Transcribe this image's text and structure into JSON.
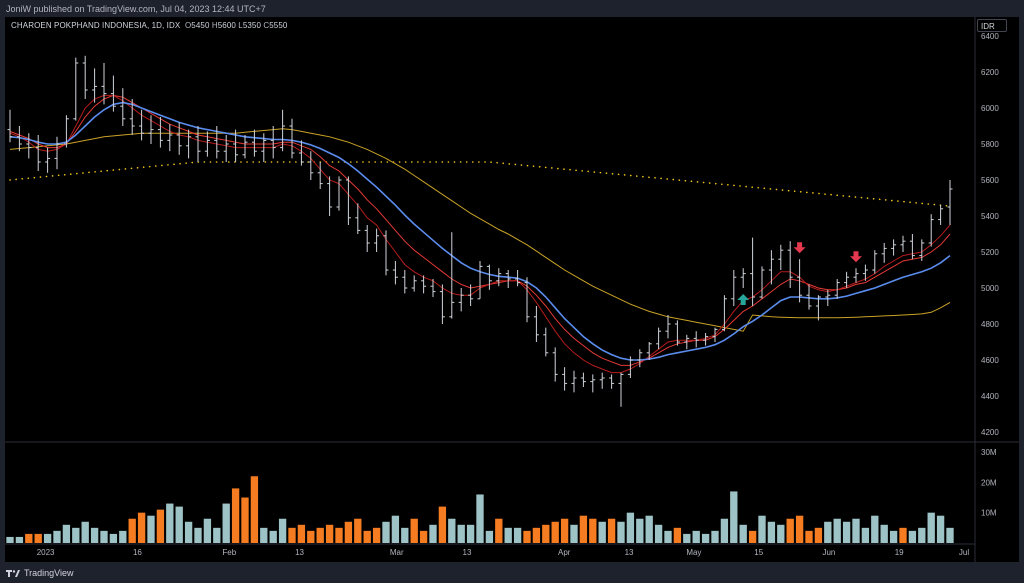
{
  "header": {
    "published_text": "JoniW published on TradingView.com, Jul 04, 2023 12:44 UTC+7"
  },
  "symbol": {
    "name": "CHAROEN POKPHAND INDONESIA, 1D, IDX",
    "open_label": "O",
    "open": "5450",
    "high_label": "H",
    "high": "5600",
    "low_label": "L",
    "low": "5350",
    "close_label": "C",
    "close": "5550"
  },
  "currency_button": "IDR",
  "footer": {
    "brand": "TradingView",
    "logo_icon": "tradingview-logo-icon"
  },
  "colors": {
    "background": "#000000",
    "frame": "#1e222d",
    "bars": "#d1d4dc",
    "ema_fast": "#b71c1c",
    "ema_mid": "#e53935",
    "ema_blue": "#5b8def",
    "sma_slow": "#c9a227",
    "sma_dotted": "#f0c419",
    "volume_up": "#9ec3c7",
    "volume_down": "#f57c20",
    "arrow_up": "#26a69a",
    "arrow_down": "#e5384f"
  },
  "chart_data": {
    "type": "ohlc-bar",
    "price_axis": {
      "ticks": [
        "6400",
        "6200",
        "6000",
        "5800",
        "5600",
        "5400",
        "5200",
        "5000",
        "4800",
        "4600",
        "4400",
        "4200"
      ],
      "range": [
        4170,
        6450
      ]
    },
    "volume_axis": {
      "ticks": [
        "30M",
        "20M",
        "10M"
      ],
      "range": [
        0,
        30
      ]
    },
    "time_axis": {
      "labels": [
        "2023",
        "16",
        "Feb",
        "13",
        "Mar",
        "13",
        "Apr",
        "13",
        "May",
        "15",
        "Jun",
        "19",
        "Jul"
      ]
    },
    "ohlc": [
      [
        5880,
        5990,
        5810,
        5840
      ],
      [
        5840,
        5900,
        5760,
        5800
      ],
      [
        5800,
        5860,
        5720,
        5780
      ],
      [
        5780,
        5850,
        5650,
        5700
      ],
      [
        5700,
        5780,
        5640,
        5720
      ],
      [
        5720,
        5840,
        5660,
        5800
      ],
      [
        5800,
        5960,
        5780,
        5940
      ],
      [
        5940,
        6280,
        5930,
        6250
      ],
      [
        6250,
        6290,
        6050,
        6100
      ],
      [
        6100,
        6220,
        6030,
        6120
      ],
      [
        6120,
        6250,
        6020,
        6080
      ],
      [
        6080,
        6180,
        5980,
        6010
      ],
      [
        6010,
        6110,
        5900,
        5940
      ],
      [
        5940,
        6050,
        5850,
        5900
      ],
      [
        5900,
        5990,
        5820,
        5860
      ],
      [
        5860,
        5960,
        5800,
        5880
      ],
      [
        5880,
        5950,
        5780,
        5820
      ],
      [
        5820,
        5910,
        5760,
        5850
      ],
      [
        5850,
        5920,
        5740,
        5790
      ],
      [
        5790,
        5880,
        5720,
        5840
      ],
      [
        5840,
        5900,
        5700,
        5760
      ],
      [
        5760,
        5870,
        5730,
        5820
      ],
      [
        5820,
        5900,
        5720,
        5760
      ],
      [
        5760,
        5850,
        5700,
        5800
      ],
      [
        5800,
        5880,
        5700,
        5740
      ],
      [
        5740,
        5850,
        5720,
        5810
      ],
      [
        5810,
        5880,
        5730,
        5760
      ],
      [
        5760,
        5860,
        5700,
        5820
      ],
      [
        5820,
        5900,
        5720,
        5780
      ],
      [
        5780,
        5990,
        5760,
        5900
      ],
      [
        5900,
        5940,
        5720,
        5750
      ],
      [
        5750,
        5820,
        5680,
        5700
      ],
      [
        5700,
        5760,
        5600,
        5640
      ],
      [
        5640,
        5700,
        5550,
        5580
      ],
      [
        5580,
        5620,
        5400,
        5450
      ],
      [
        5450,
        5620,
        5430,
        5600
      ],
      [
        5600,
        5620,
        5350,
        5390
      ],
      [
        5390,
        5470,
        5300,
        5320
      ],
      [
        5320,
        5350,
        5200,
        5250
      ],
      [
        5250,
        5330,
        5200,
        5290
      ],
      [
        5290,
        5320,
        5070,
        5100
      ],
      [
        5100,
        5150,
        5020,
        5060
      ],
      [
        5060,
        5100,
        4970,
        5000
      ],
      [
        5000,
        5070,
        4980,
        5040
      ],
      [
        5040,
        5070,
        4970,
        5010
      ],
      [
        5010,
        5050,
        4950,
        4980
      ],
      [
        4980,
        5020,
        4800,
        4840
      ],
      [
        4840,
        5310,
        4830,
        4920
      ],
      [
        4920,
        5000,
        4870,
        4960
      ],
      [
        4960,
        5020,
        4900,
        4940
      ],
      [
        4940,
        5150,
        4940,
        5120
      ],
      [
        5120,
        5130,
        4990,
        5040
      ],
      [
        5040,
        5110,
        5010,
        5080
      ],
      [
        5080,
        5100,
        5000,
        5050
      ],
      [
        5050,
        5100,
        5010,
        5030
      ],
      [
        5030,
        5060,
        4810,
        4840
      ],
      [
        4840,
        4900,
        4700,
        4740
      ],
      [
        4740,
        4780,
        4620,
        4640
      ],
      [
        4640,
        4670,
        4480,
        4520
      ],
      [
        4520,
        4560,
        4430,
        4470
      ],
      [
        4470,
        4540,
        4420,
        4500
      ],
      [
        4500,
        4530,
        4450,
        4480
      ],
      [
        4480,
        4520,
        4420,
        4490
      ],
      [
        4490,
        4530,
        4440,
        4500
      ],
      [
        4500,
        4520,
        4440,
        4470
      ],
      [
        4470,
        4530,
        4340,
        4520
      ],
      [
        4520,
        4620,
        4500,
        4600
      ],
      [
        4600,
        4660,
        4560,
        4640
      ],
      [
        4640,
        4700,
        4600,
        4690
      ],
      [
        4690,
        4780,
        4660,
        4760
      ],
      [
        4760,
        4850,
        4720,
        4800
      ],
      [
        4800,
        4820,
        4680,
        4700
      ],
      [
        4700,
        4740,
        4660,
        4720
      ],
      [
        4720,
        4760,
        4670,
        4710
      ],
      [
        4710,
        4750,
        4680,
        4730
      ],
      [
        4730,
        4780,
        4700,
        4770
      ],
      [
        4770,
        4960,
        4760,
        4940
      ],
      [
        4940,
        5100,
        4900,
        5060
      ],
      [
        5060,
        5110,
        5000,
        5080
      ],
      [
        5080,
        5280,
        4900,
        4950
      ],
      [
        4950,
        5120,
        4940,
        5100
      ],
      [
        5100,
        5210,
        5020,
        5160
      ],
      [
        5160,
        5240,
        5100,
        5210
      ],
      [
        5210,
        5260,
        5000,
        5060
      ],
      [
        5060,
        5160,
        4920,
        4960
      ],
      [
        4960,
        5020,
        4880,
        4900
      ],
      [
        4900,
        4960,
        4820,
        4950
      ],
      [
        4950,
        4990,
        4900,
        4960
      ],
      [
        4960,
        5050,
        4940,
        5030
      ],
      [
        5030,
        5090,
        5000,
        5060
      ],
      [
        5060,
        5110,
        5030,
        5080
      ],
      [
        5080,
        5130,
        5040,
        5100
      ],
      [
        5100,
        5210,
        5080,
        5190
      ],
      [
        5190,
        5250,
        5140,
        5220
      ],
      [
        5220,
        5270,
        5180,
        5240
      ],
      [
        5240,
        5290,
        5200,
        5260
      ],
      [
        5260,
        5300,
        5160,
        5180
      ],
      [
        5180,
        5270,
        5150,
        5250
      ],
      [
        5250,
        5410,
        5230,
        5380
      ],
      [
        5380,
        5460,
        5350,
        5440
      ],
      [
        5450,
        5600,
        5350,
        5550
      ]
    ],
    "ema_fast": [
      5860,
      5840,
      5810,
      5770,
      5760,
      5770,
      5800,
      5900,
      6000,
      6050,
      6070,
      6070,
      6040,
      6000,
      5960,
      5930,
      5900,
      5870,
      5850,
      5840,
      5820,
      5810,
      5800,
      5790,
      5780,
      5780,
      5780,
      5780,
      5780,
      5800,
      5790,
      5760,
      5720,
      5660,
      5600,
      5580,
      5520,
      5460,
      5390,
      5350,
      5270,
      5200,
      5130,
      5090,
      5060,
      5040,
      5000,
      4970,
      4960,
      4960,
      5000,
      5020,
      5040,
      5040,
      5040,
      4990,
      4920,
      4840,
      4760,
      4690,
      4640,
      4600,
      4570,
      4550,
      4530,
      4530,
      4550,
      4580,
      4620,
      4660,
      4700,
      4710,
      4710,
      4710,
      4720,
      4740,
      4800,
      4870,
      4930,
      4950,
      4990,
      5040,
      5090,
      5090,
      5060,
      5010,
      4990,
      4980,
      4990,
      5010,
      5030,
      5050,
      5080,
      5120,
      5150,
      5180,
      5190,
      5200,
      5240,
      5290,
      5350
    ],
    "ema_mid": [
      5870,
      5850,
      5830,
      5800,
      5780,
      5780,
      5800,
      5870,
      5950,
      6010,
      6050,
      6070,
      6060,
      6030,
      6000,
      5970,
      5940,
      5910,
      5890,
      5870,
      5850,
      5840,
      5830,
      5820,
      5810,
      5800,
      5800,
      5800,
      5800,
      5810,
      5810,
      5790,
      5770,
      5730,
      5680,
      5650,
      5600,
      5550,
      5490,
      5440,
      5380,
      5320,
      5260,
      5210,
      5170,
      5130,
      5090,
      5050,
      5020,
      5000,
      5010,
      5020,
      5030,
      5040,
      5040,
      5010,
      4960,
      4900,
      4830,
      4770,
      4720,
      4680,
      4640,
      4610,
      4590,
      4570,
      4570,
      4590,
      4610,
      4640,
      4670,
      4690,
      4700,
      4710,
      4710,
      4730,
      4770,
      4820,
      4870,
      4900,
      4940,
      4980,
      5020,
      5050,
      5040,
      5020,
      5000,
      4990,
      4990,
      5000,
      5020,
      5030,
      5060,
      5090,
      5120,
      5150,
      5160,
      5170,
      5200,
      5240,
      5300
    ],
    "ema_blue": [
      5840,
      5835,
      5825,
      5810,
      5800,
      5800,
      5810,
      5850,
      5900,
      5950,
      5990,
      6020,
      6030,
      6020,
      6000,
      5980,
      5960,
      5940,
      5920,
      5905,
      5890,
      5880,
      5870,
      5860,
      5850,
      5840,
      5835,
      5830,
      5825,
      5825,
      5820,
      5810,
      5795,
      5775,
      5750,
      5725,
      5690,
      5650,
      5605,
      5560,
      5510,
      5460,
      5405,
      5355,
      5310,
      5265,
      5220,
      5180,
      5140,
      5110,
      5090,
      5075,
      5065,
      5060,
      5055,
      5035,
      5000,
      4950,
      4890,
      4830,
      4780,
      4730,
      4690,
      4655,
      4630,
      4610,
      4600,
      4600,
      4605,
      4615,
      4630,
      4640,
      4650,
      4660,
      4670,
      4685,
      4710,
      4745,
      4785,
      4815,
      4850,
      4890,
      4930,
      4950,
      4950,
      4945,
      4940,
      4940,
      4945,
      4955,
      4970,
      4985,
      5000,
      5020,
      5040,
      5060,
      5075,
      5090,
      5110,
      5140,
      5180
    ],
    "sma_slow": [
      5770,
      5775,
      5780,
      5785,
      5790,
      5795,
      5800,
      5810,
      5820,
      5830,
      5840,
      5845,
      5850,
      5855,
      5860,
      5860,
      5860,
      5860,
      5860,
      5860,
      5860,
      5860,
      5860,
      5860,
      5860,
      5865,
      5870,
      5875,
      5880,
      5885,
      5880,
      5870,
      5860,
      5850,
      5840,
      5825,
      5810,
      5790,
      5770,
      5745,
      5720,
      5690,
      5660,
      5625,
      5590,
      5555,
      5520,
      5485,
      5450,
      5415,
      5385,
      5355,
      5325,
      5300,
      5270,
      5240,
      5205,
      5170,
      5135,
      5100,
      5070,
      5040,
      5010,
      4985,
      4960,
      4935,
      4910,
      4890,
      4870,
      4855,
      4840,
      4830,
      4820,
      4810,
      4800,
      4790,
      4780,
      4770,
      4760,
      4850,
      4845,
      4840,
      4838,
      4836,
      4835,
      4835,
      4835,
      4835,
      4835,
      4836,
      4838,
      4840,
      4842,
      4845,
      4847,
      4850,
      4853,
      4856,
      4865,
      4890,
      4920
    ],
    "sma_dotted": [
      5600,
      5605,
      5610,
      5615,
      5620,
      5625,
      5630,
      5635,
      5640,
      5645,
      5650,
      5655,
      5660,
      5665,
      5670,
      5675,
      5680,
      5685,
      5690,
      5695,
      5700,
      5700,
      5700,
      5700,
      5700,
      5700,
      5700,
      5700,
      5700,
      5700,
      5700,
      5700,
      5700,
      5700,
      5700,
      5700,
      5700,
      5700,
      5700,
      5700,
      5700,
      5700,
      5700,
      5700,
      5700,
      5700,
      5700,
      5700,
      5700,
      5700,
      5700,
      5700,
      5695,
      5690,
      5685,
      5680,
      5675,
      5670,
      5665,
      5660,
      5655,
      5650,
      5645,
      5640,
      5635,
      5630,
      5625,
      5620,
      5615,
      5610,
      5605,
      5600,
      5595,
      5590,
      5585,
      5580,
      5575,
      5570,
      5565,
      5560,
      5555,
      5550,
      5545,
      5540,
      5535,
      5530,
      5525,
      5520,
      5515,
      5510,
      5505,
      5500,
      5495,
      5490,
      5485,
      5480,
      5475,
      5470,
      5465,
      5460,
      5455
    ],
    "volume": [
      2,
      2,
      3,
      3,
      3,
      4,
      6,
      5,
      7,
      5,
      4,
      3,
      4,
      8,
      10,
      9,
      11,
      13,
      12,
      7,
      5,
      8,
      5,
      13,
      18,
      15,
      22,
      5,
      4,
      8,
      5,
      6,
      4,
      5,
      6,
      5,
      7,
      8,
      4,
      5,
      7,
      9,
      5,
      8,
      4,
      6,
      12,
      8,
      6,
      6,
      16,
      4,
      8,
      5,
      5,
      4,
      5,
      6,
      7,
      8,
      6,
      9,
      8,
      7,
      8,
      7,
      10,
      8,
      9,
      6,
      4,
      5,
      3,
      4,
      3,
      4,
      8,
      17,
      6,
      4,
      9,
      7,
      6,
      8,
      9,
      4,
      5,
      7,
      8,
      7,
      8,
      5,
      9,
      6,
      4,
      5,
      4,
      5,
      10,
      9,
      5
    ],
    "volume_up": [
      1,
      1,
      0,
      0,
      1,
      1,
      1,
      1,
      1,
      1,
      1,
      1,
      1,
      0,
      0,
      1,
      0,
      1,
      1,
      1,
      1,
      1,
      1,
      1,
      0,
      0,
      0,
      1,
      1,
      1,
      0,
      0,
      0,
      0,
      0,
      0,
      0,
      0,
      0,
      0,
      1,
      1,
      1,
      0,
      0,
      1,
      0,
      1,
      1,
      1,
      1,
      1,
      0,
      1,
      1,
      0,
      0,
      0,
      0,
      0,
      1,
      0,
      0,
      1,
      0,
      1,
      1,
      1,
      1,
      1,
      1,
      0,
      1,
      1,
      1,
      1,
      1,
      1,
      1,
      0,
      1,
      1,
      1,
      0,
      0,
      0,
      0,
      1,
      1,
      1,
      1,
      1,
      1,
      1,
      1,
      0,
      1,
      1,
      1,
      1,
      1
    ],
    "arrows_up_index": [
      78
    ],
    "arrows_down_index": [
      84,
      90
    ]
  }
}
